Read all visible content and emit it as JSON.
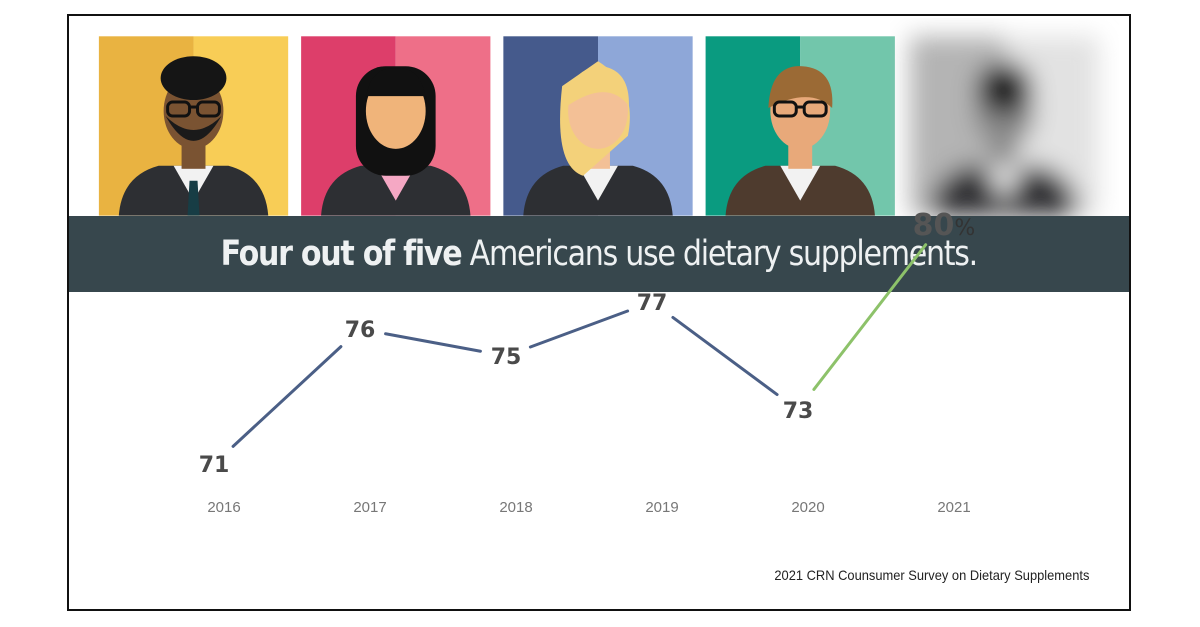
{
  "banner": {
    "bold": "Four out of five",
    "rest": " Americans use dietary supplements."
  },
  "source_note": "2021 CRN Counsumer Survey on Dietary Supplements",
  "colors": {
    "line_main": "#4b5f86",
    "line_highlight": "#8dc26a",
    "banner_bg": "#37474d"
  },
  "portraits": [
    {
      "name": "man-with-glasses-beard",
      "left": "#e9b341",
      "right": "#f8cd56"
    },
    {
      "name": "woman-dark-hair",
      "left": "#dd3e6a",
      "right": "#ee6f88"
    },
    {
      "name": "woman-blonde",
      "left": "#455a8c",
      "right": "#8ea7d8"
    },
    {
      "name": "person-with-glasses",
      "left": "#0a9b80",
      "right": "#72c6ab"
    },
    {
      "name": "blurred-person",
      "left": "#b4b4b4",
      "right": "#e2e2e2"
    }
  ],
  "chart_data": {
    "type": "line",
    "x": [
      "2016",
      "2017",
      "2018",
      "2019",
      "2020",
      "2021"
    ],
    "values": [
      71,
      76,
      75,
      77,
      73,
      80
    ],
    "labels": [
      "71",
      "76",
      "75",
      "77",
      "73",
      "80"
    ],
    "highlight_suffix": "%",
    "title": "",
    "xlabel": "",
    "ylabel": ""
  }
}
